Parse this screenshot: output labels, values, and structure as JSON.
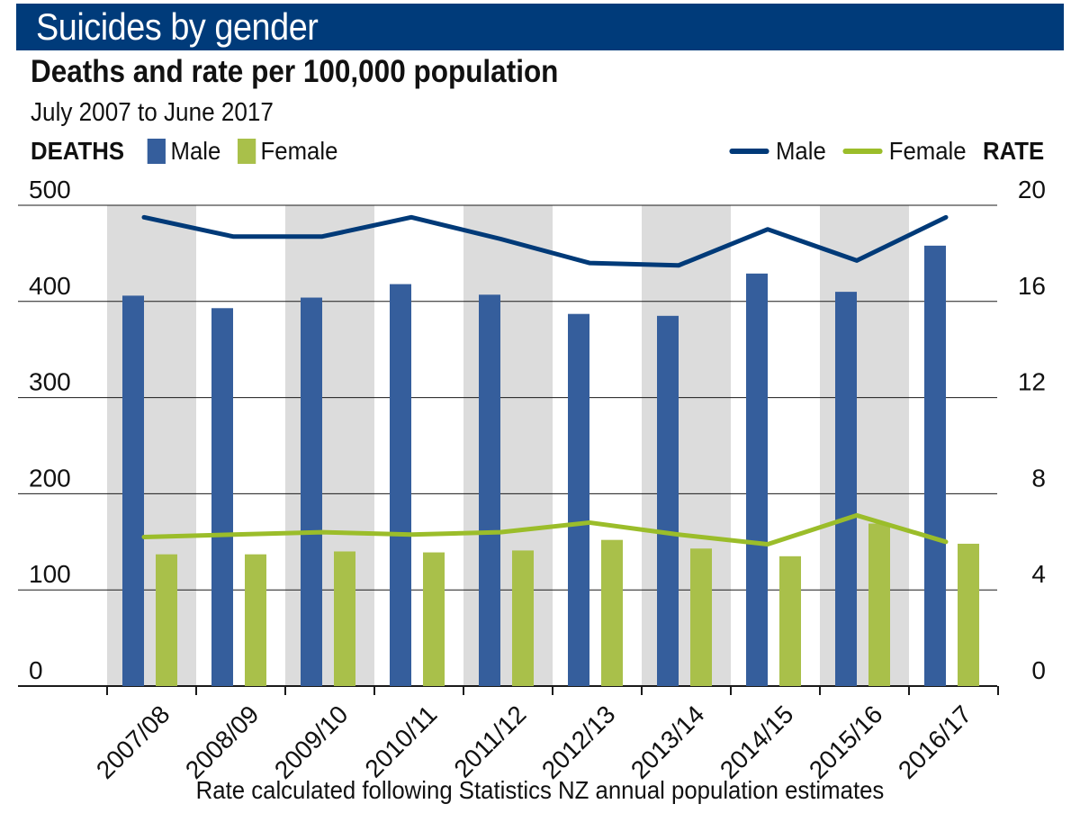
{
  "title": "Suicides by gender",
  "subtitle": "Deaths and rate per 100,000 population",
  "period": "July 2007 to June 2017",
  "footnote": "Rate calculated following Statistics NZ annual population estimates",
  "legend": {
    "left_axis_label": "DEATHS",
    "right_axis_label": "RATE",
    "bar_male": "Male",
    "bar_female": "Female",
    "line_male": "Male",
    "line_female": "Female"
  },
  "colors": {
    "banner": "#003b7a",
    "bar_male": "#355e9c",
    "bar_female": "#a9c04a",
    "line_male": "#003a78",
    "line_female": "#9bbd2a",
    "band": "#dcdcdc",
    "grid": "#1a1a1a"
  },
  "chart_data": {
    "type": "bar",
    "categories": [
      "2007/08",
      "2008/09",
      "2009/10",
      "2010/11",
      "2011/12",
      "2012/13",
      "2013/14",
      "2014/15",
      "2015/16",
      "2016/17"
    ],
    "left_axis": {
      "label": "DEATHS",
      "ylim": [
        0,
        500
      ],
      "ticks": [
        0,
        100,
        200,
        300,
        400,
        500
      ]
    },
    "right_axis": {
      "label": "RATE",
      "ylim": [
        0,
        20
      ],
      "ticks": [
        0,
        4,
        8,
        12,
        16,
        20
      ]
    },
    "series": [
      {
        "name": "Male",
        "kind": "bar",
        "axis": "left",
        "values": [
          406,
          393,
          404,
          418,
          407,
          387,
          385,
          429,
          410,
          458
        ]
      },
      {
        "name": "Female",
        "kind": "bar",
        "axis": "left",
        "values": [
          137,
          137,
          140,
          139,
          141,
          152,
          143,
          135,
          169,
          148
        ]
      },
      {
        "name": "Male",
        "kind": "line",
        "axis": "right",
        "values": [
          19.5,
          18.7,
          18.7,
          19.5,
          18.6,
          17.6,
          17.5,
          19.0,
          17.7,
          19.5
        ]
      },
      {
        "name": "Female",
        "kind": "line",
        "axis": "right",
        "values": [
          6.2,
          6.3,
          6.4,
          6.3,
          6.4,
          6.8,
          6.3,
          5.9,
          7.1,
          6.0
        ]
      }
    ],
    "grid": true,
    "alternating_bands": true
  }
}
